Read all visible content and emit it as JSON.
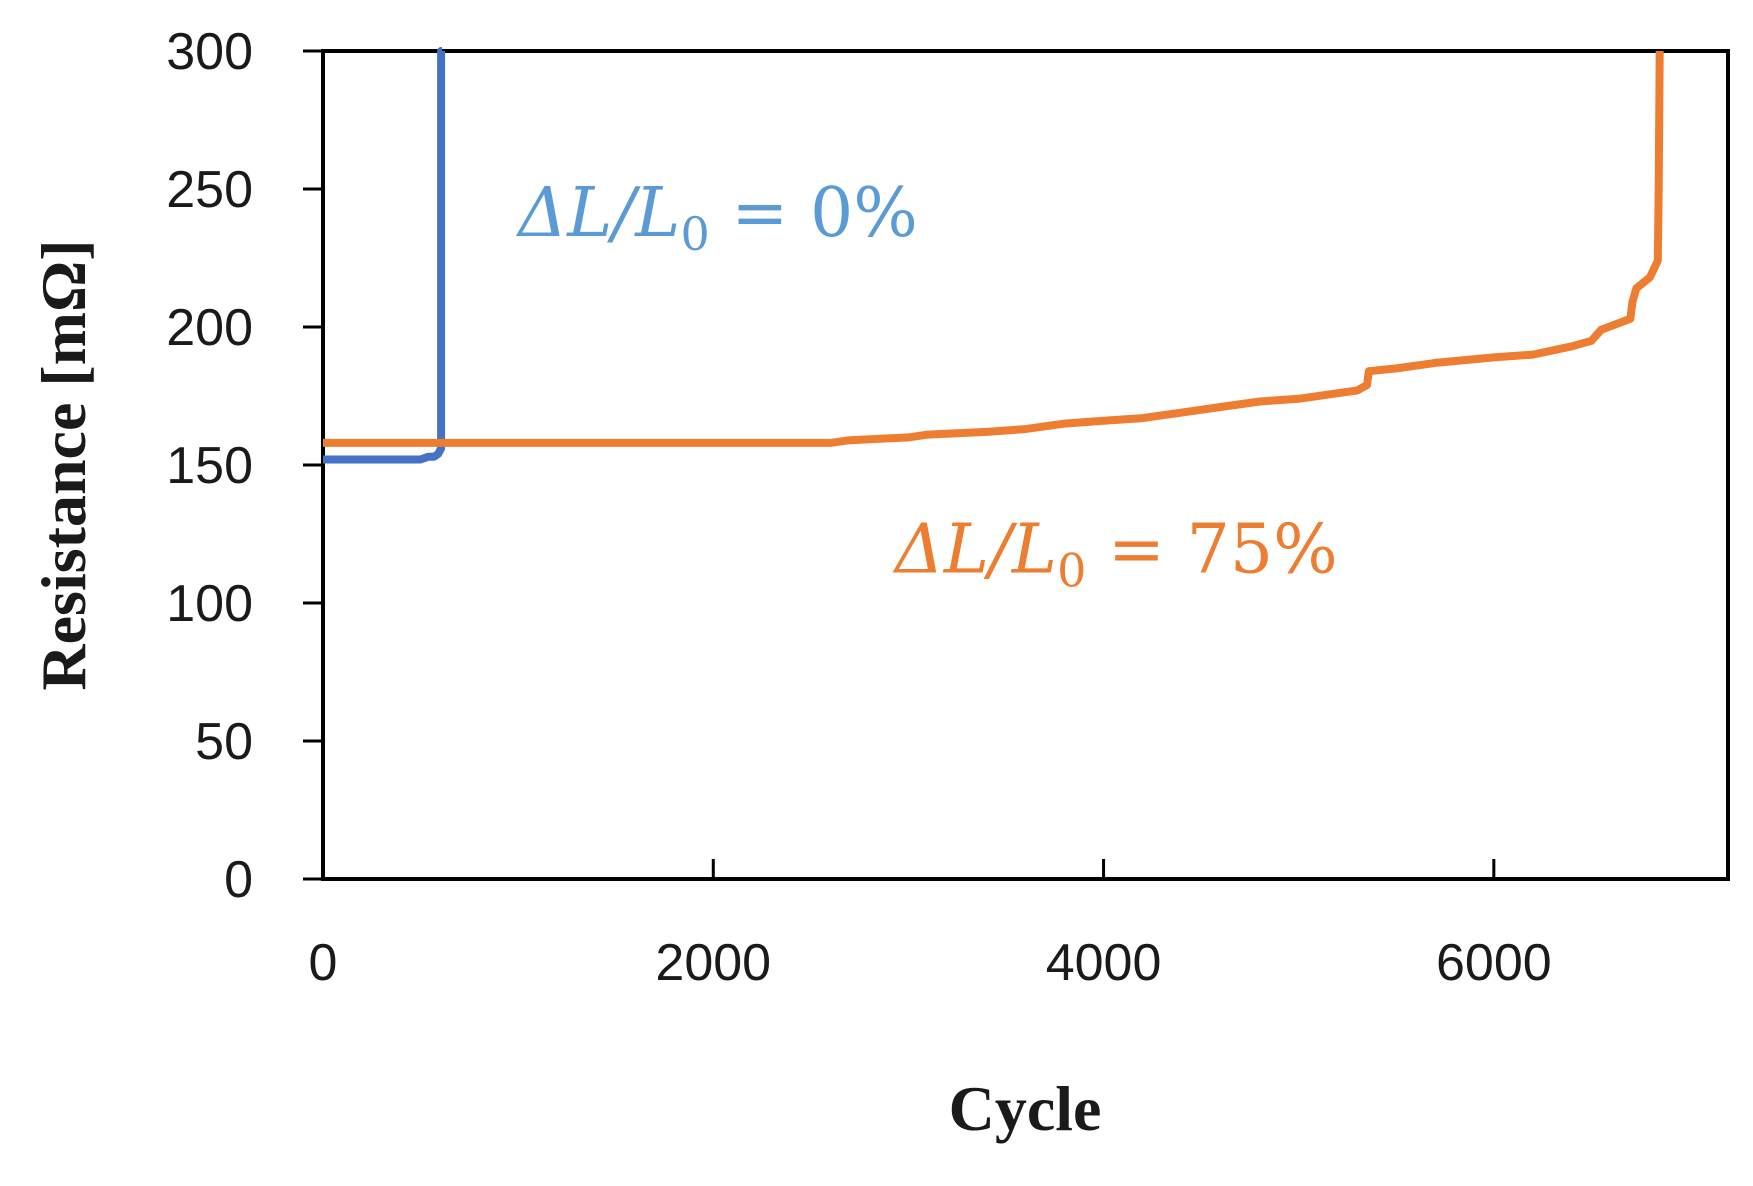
{
  "chart_data": {
    "type": "line",
    "title": "",
    "xlabel": "Cycle",
    "ylabel": "Resistance [mΩ]",
    "xlim": [
      0,
      7200
    ],
    "ylim": [
      0,
      300
    ],
    "xticks": [
      0,
      2000,
      4000,
      6000
    ],
    "yticks": [
      0,
      50,
      100,
      150,
      200,
      250,
      300
    ],
    "xtick_labels": [
      "0",
      "2000",
      "4000",
      "6000"
    ],
    "ytick_labels": [
      "0",
      "50",
      "100",
      "150",
      "200",
      "250",
      "300"
    ],
    "grid": false,
    "legend": "none",
    "series": [
      {
        "name": "ΔL/L0 = 0%",
        "color": "#4472C4",
        "x": [
          0,
          500,
          540,
          570,
          590,
          605,
          605,
          610
        ],
        "y": [
          152,
          152,
          153,
          153,
          154,
          156,
          300,
          300
        ]
      },
      {
        "name": "ΔL/L0 = 75%",
        "color": "#ED7D31",
        "x": [
          0,
          1000,
          2000,
          2600,
          2700,
          3000,
          3100,
          3400,
          3600,
          3800,
          4000,
          4200,
          4400,
          4600,
          4800,
          5000,
          5200,
          5300,
          5350,
          5360,
          5500,
          5700,
          6000,
          6200,
          6400,
          6500,
          6550,
          6700,
          6710,
          6730,
          6800,
          6840,
          6845,
          6850
        ],
        "y": [
          158,
          158,
          158,
          158,
          159,
          160,
          161,
          162,
          163,
          165,
          166,
          167,
          169,
          171,
          173,
          174,
          176,
          177,
          179,
          184,
          185,
          187,
          189,
          190,
          193,
          195,
          199,
          203,
          209,
          214,
          218,
          224,
          250,
          300
        ]
      }
    ],
    "annotations": [
      {
        "prefix": "ΔL/L",
        "subscript": "0",
        "suffix": " = 0%",
        "color": "#5B9BD5",
        "x": 1000,
        "y": 233
      },
      {
        "prefix": "ΔL/L",
        "subscript": "0",
        "suffix": " = 75%",
        "color": "#ED7D31",
        "x": 2930,
        "y": 111
      }
    ]
  }
}
